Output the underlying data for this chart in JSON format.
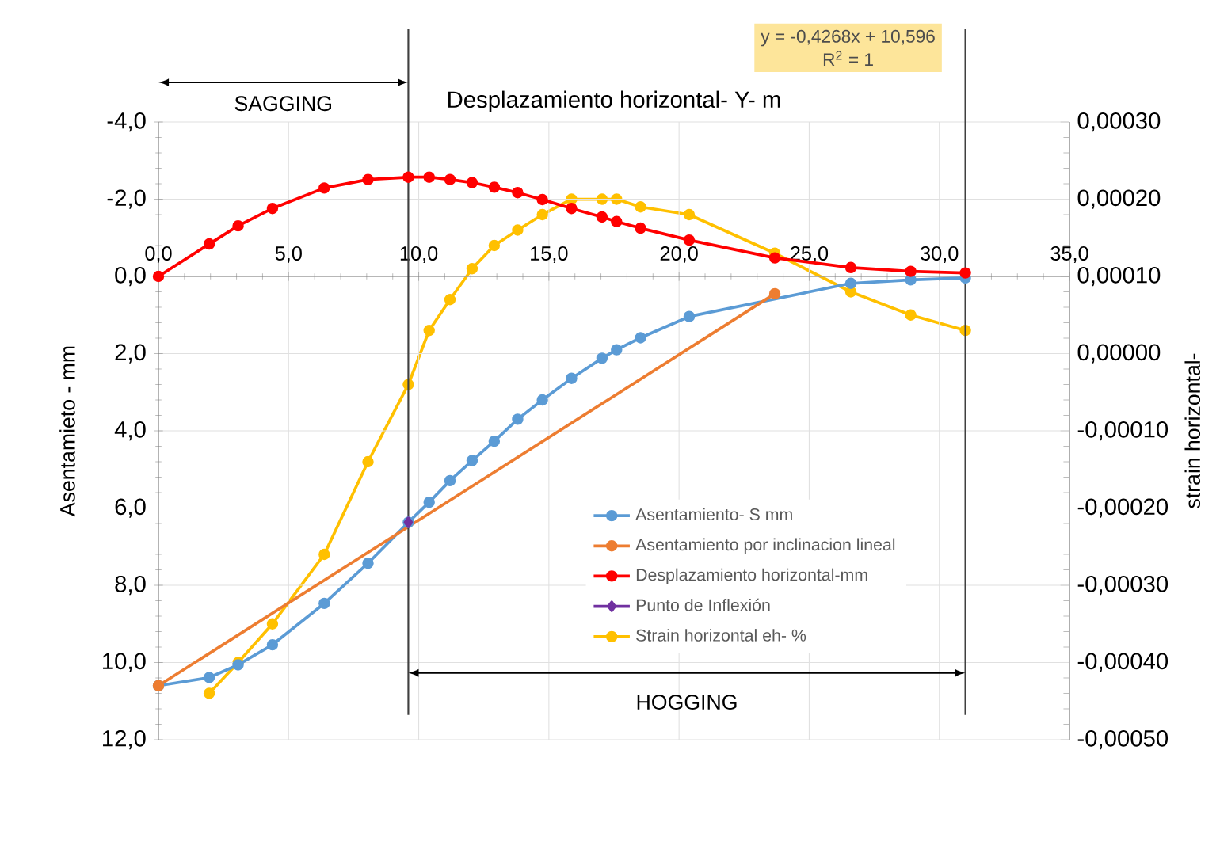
{
  "chart_data": {
    "type": "line",
    "xlabel": "Desplazamiento horizontal- Y- m",
    "ylabel": "Asentamieto - mm",
    "y2label": "strain horizontal-",
    "xlim": [
      0,
      35
    ],
    "xticks": [
      {
        "value": 0,
        "label": "0,0"
      },
      {
        "value": 5,
        "label": "5,0"
      },
      {
        "value": 10,
        "label": "10,0"
      },
      {
        "value": 15,
        "label": "15,0"
      },
      {
        "value": 20,
        "label": "20,0"
      },
      {
        "value": 25,
        "label": "25,0"
      },
      {
        "value": 30,
        "label": "30,0"
      },
      {
        "value": 35,
        "label": "35,0"
      }
    ],
    "ylim": [
      12,
      -4
    ],
    "yticks": [
      {
        "value": -4,
        "label": "-4,0"
      },
      {
        "value": -2,
        "label": "-2,0"
      },
      {
        "value": 0,
        "label": "0,0"
      },
      {
        "value": 2,
        "label": "2,0"
      },
      {
        "value": 4,
        "label": "4,0"
      },
      {
        "value": 6,
        "label": "6,0"
      },
      {
        "value": 8,
        "label": "8,0"
      },
      {
        "value": 10,
        "label": "10,0"
      },
      {
        "value": 12,
        "label": "12,0"
      }
    ],
    "y2lim": [
      -0.0005,
      0.0003
    ],
    "y2ticks": [
      {
        "value": -0.0005,
        "label": "-0,00050"
      },
      {
        "value": -0.0004,
        "label": "-0,00040"
      },
      {
        "value": -0.0003,
        "label": "-0,00030"
      },
      {
        "value": -0.0002,
        "label": "-0,00020"
      },
      {
        "value": -0.0001,
        "label": "-0,00010"
      },
      {
        "value": 0,
        "label": "0,00000"
      },
      {
        "value": 0.0001,
        "label": "0,00010"
      },
      {
        "value": 0.0002,
        "label": "0,00020"
      },
      {
        "value": 0.0003,
        "label": "0,00030"
      }
    ],
    "grid": true,
    "legend": "bottom",
    "marker": "circle",
    "line_style": "solid",
    "series": [
      {
        "name": "Asentamiento- S mm",
        "color": "#5b9bd5",
        "x": [
          0,
          1.95,
          3.06,
          4.38,
          6.37,
          8.05,
          9.6,
          10.4,
          11.2,
          12.05,
          12.9,
          13.8,
          14.75,
          15.87,
          17.04,
          17.6,
          18.52,
          20.39,
          26.6,
          28.9,
          31.0
        ],
        "values": [
          10.6,
          10.39,
          10.06,
          9.54,
          8.47,
          7.43,
          6.37,
          5.85,
          5.29,
          4.77,
          4.27,
          3.7,
          3.2,
          2.64,
          2.12,
          1.9,
          1.59,
          1.04,
          0.18,
          0.09,
          0.04
        ]
      },
      {
        "name": "Asentamiento por inclinacion lineal",
        "color": "#ed7d31",
        "x": [
          0,
          23.68
        ],
        "values": [
          10.6,
          0.45
        ]
      },
      {
        "name": "Desplazamiento  horizontal-mm",
        "color": "#ff0000",
        "x": [
          0,
          1.95,
          3.06,
          4.38,
          6.37,
          8.05,
          9.6,
          10.4,
          11.2,
          12.05,
          12.9,
          13.8,
          14.75,
          15.87,
          17.04,
          17.6,
          18.52,
          20.39,
          23.68,
          26.6,
          28.9,
          31.0
        ],
        "values": [
          0,
          -0.84,
          -1.31,
          -1.76,
          -2.29,
          -2.51,
          -2.57,
          -2.57,
          -2.51,
          -2.43,
          -2.31,
          -2.17,
          -1.99,
          -1.76,
          -1.54,
          -1.42,
          -1.25,
          -0.94,
          -0.48,
          -0.23,
          -0.13,
          -0.09
        ]
      },
      {
        "name": "Punto de Inflexión",
        "color": "#7030a0",
        "marker": "diamond",
        "x": [
          9.6
        ],
        "values": [
          6.37
        ]
      },
      {
        "name": "Strain horizontal eh- %",
        "color": "#ffc000",
        "axis": "y2",
        "x": [
          1.95,
          3.06,
          4.38,
          6.37,
          8.05,
          9.6,
          10.4,
          11.2,
          12.05,
          12.9,
          13.8,
          14.75,
          15.87,
          17.04,
          17.6,
          18.52,
          20.39,
          23.68,
          26.6,
          28.9,
          31.0
        ],
        "values": [
          -0.00044,
          -0.0004,
          -0.00035,
          -0.00026,
          -0.00014,
          -4e-05,
          3e-05,
          7e-05,
          0.00011,
          0.00014,
          0.00016,
          0.00018,
          0.0002,
          0.0002,
          0.0002,
          0.00019,
          0.00018,
          0.00013,
          8e-05,
          5e-05,
          3e-05
        ]
      }
    ],
    "ref_lines": [
      {
        "axis": "x",
        "value": 9.6,
        "color": "#404040"
      },
      {
        "axis": "x",
        "value": 31.0,
        "color": "#404040"
      }
    ],
    "annotations": [
      "SAGGING",
      "HOGGING",
      "y = -0,4268x + 10,596",
      "R$^{2}$ = 1"
    ]
  }
}
